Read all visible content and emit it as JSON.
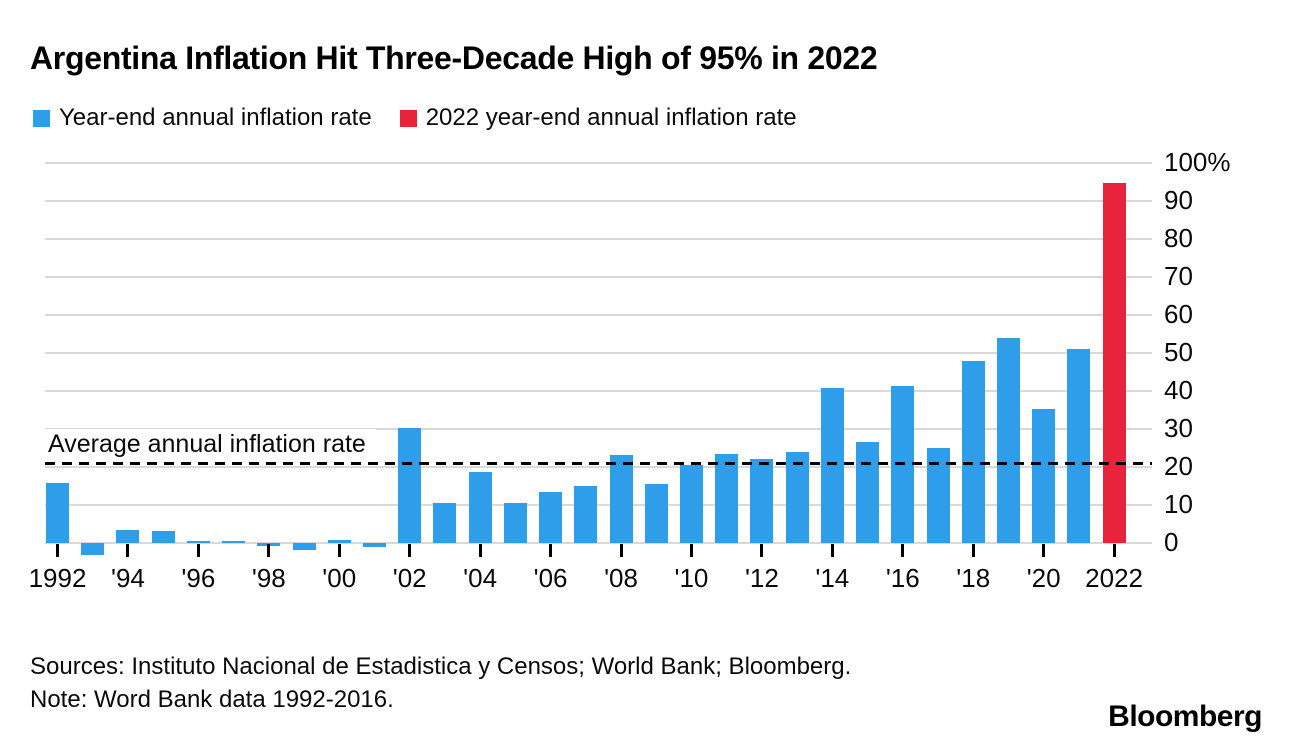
{
  "title": "Argentina Inflation Hit Three-Decade High of 95% in 2022",
  "legend": [
    {
      "label": "Year-end annual inflation rate",
      "color": "#2E9EEA"
    },
    {
      "label": "2022 year-end annual inflation rate",
      "color": "#E8243C"
    }
  ],
  "chart_data": {
    "type": "bar",
    "title": "Argentina Inflation Hit Three-Decade High of 95% in 2022",
    "xlabel": "",
    "ylabel": "Year-end annual inflation rate (%)",
    "ylim": [
      -5,
      100
    ],
    "grid": true,
    "legend_position": "top",
    "categories": [
      1992,
      1993,
      1994,
      1995,
      1996,
      1997,
      1998,
      1999,
      2000,
      2001,
      2002,
      2003,
      2004,
      2005,
      2006,
      2007,
      2008,
      2009,
      2010,
      2011,
      2012,
      2013,
      2014,
      2015,
      2016,
      2017,
      2018,
      2019,
      2020,
      2021,
      2022
    ],
    "values": [
      15.7,
      -3.1,
      3.3,
      3.2,
      0.2,
      0.3,
      -0.7,
      -1.8,
      0.9,
      -1.1,
      30.3,
      10.4,
      18.6,
      10.5,
      13.4,
      14.9,
      23.2,
      15.4,
      20.5,
      23.5,
      22.1,
      24.0,
      40.7,
      26.5,
      41.2,
      25.0,
      47.8,
      53.9,
      35.3,
      51.1,
      94.8
    ],
    "series": [
      {
        "name": "Year-end annual inflation rate",
        "years": "1992-2021",
        "color": "#2E9EEA"
      },
      {
        "name": "2022 year-end annual inflation rate",
        "years": "2022",
        "color": "#E8243C"
      }
    ],
    "y_ticks": [
      {
        "value": 0,
        "label": "0"
      },
      {
        "value": 10,
        "label": "10"
      },
      {
        "value": 20,
        "label": "20"
      },
      {
        "value": 30,
        "label": "30"
      },
      {
        "value": 40,
        "label": "40"
      },
      {
        "value": 50,
        "label": "50"
      },
      {
        "value": 60,
        "label": "60"
      },
      {
        "value": 70,
        "label": "70"
      },
      {
        "value": 80,
        "label": "80"
      },
      {
        "value": 90,
        "label": "90"
      },
      {
        "value": 100,
        "label": "100%"
      }
    ],
    "x_ticks": [
      {
        "year": 1992,
        "label": "1992"
      },
      {
        "year": 1994,
        "label": "'94"
      },
      {
        "year": 1996,
        "label": "'96"
      },
      {
        "year": 1998,
        "label": "'98"
      },
      {
        "year": 2000,
        "label": "'00"
      },
      {
        "year": 2002,
        "label": "'02"
      },
      {
        "year": 2004,
        "label": "'04"
      },
      {
        "year": 2006,
        "label": "'06"
      },
      {
        "year": 2008,
        "label": "'08"
      },
      {
        "year": 2010,
        "label": "'10"
      },
      {
        "year": 2012,
        "label": "'12"
      },
      {
        "year": 2014,
        "label": "'14"
      },
      {
        "year": 2016,
        "label": "'16"
      },
      {
        "year": 2018,
        "label": "'18"
      },
      {
        "year": 2020,
        "label": "'20"
      },
      {
        "year": 2022,
        "label": "2022"
      }
    ],
    "annotation": {
      "label": "Average annual inflation rate",
      "value": 21
    },
    "colors": {
      "bar": "#2E9EEA",
      "highlight": "#E8243C",
      "highlight_year": 2022,
      "gridline": "#D9D9D9",
      "annotation_line": "#000000"
    }
  },
  "footer": {
    "sources": "Sources: Instituto Nacional de Estadistica y Censos; World Bank; Bloomberg.",
    "note": "Note: Word Bank data 1992-2016.",
    "logo": "Bloomberg"
  }
}
